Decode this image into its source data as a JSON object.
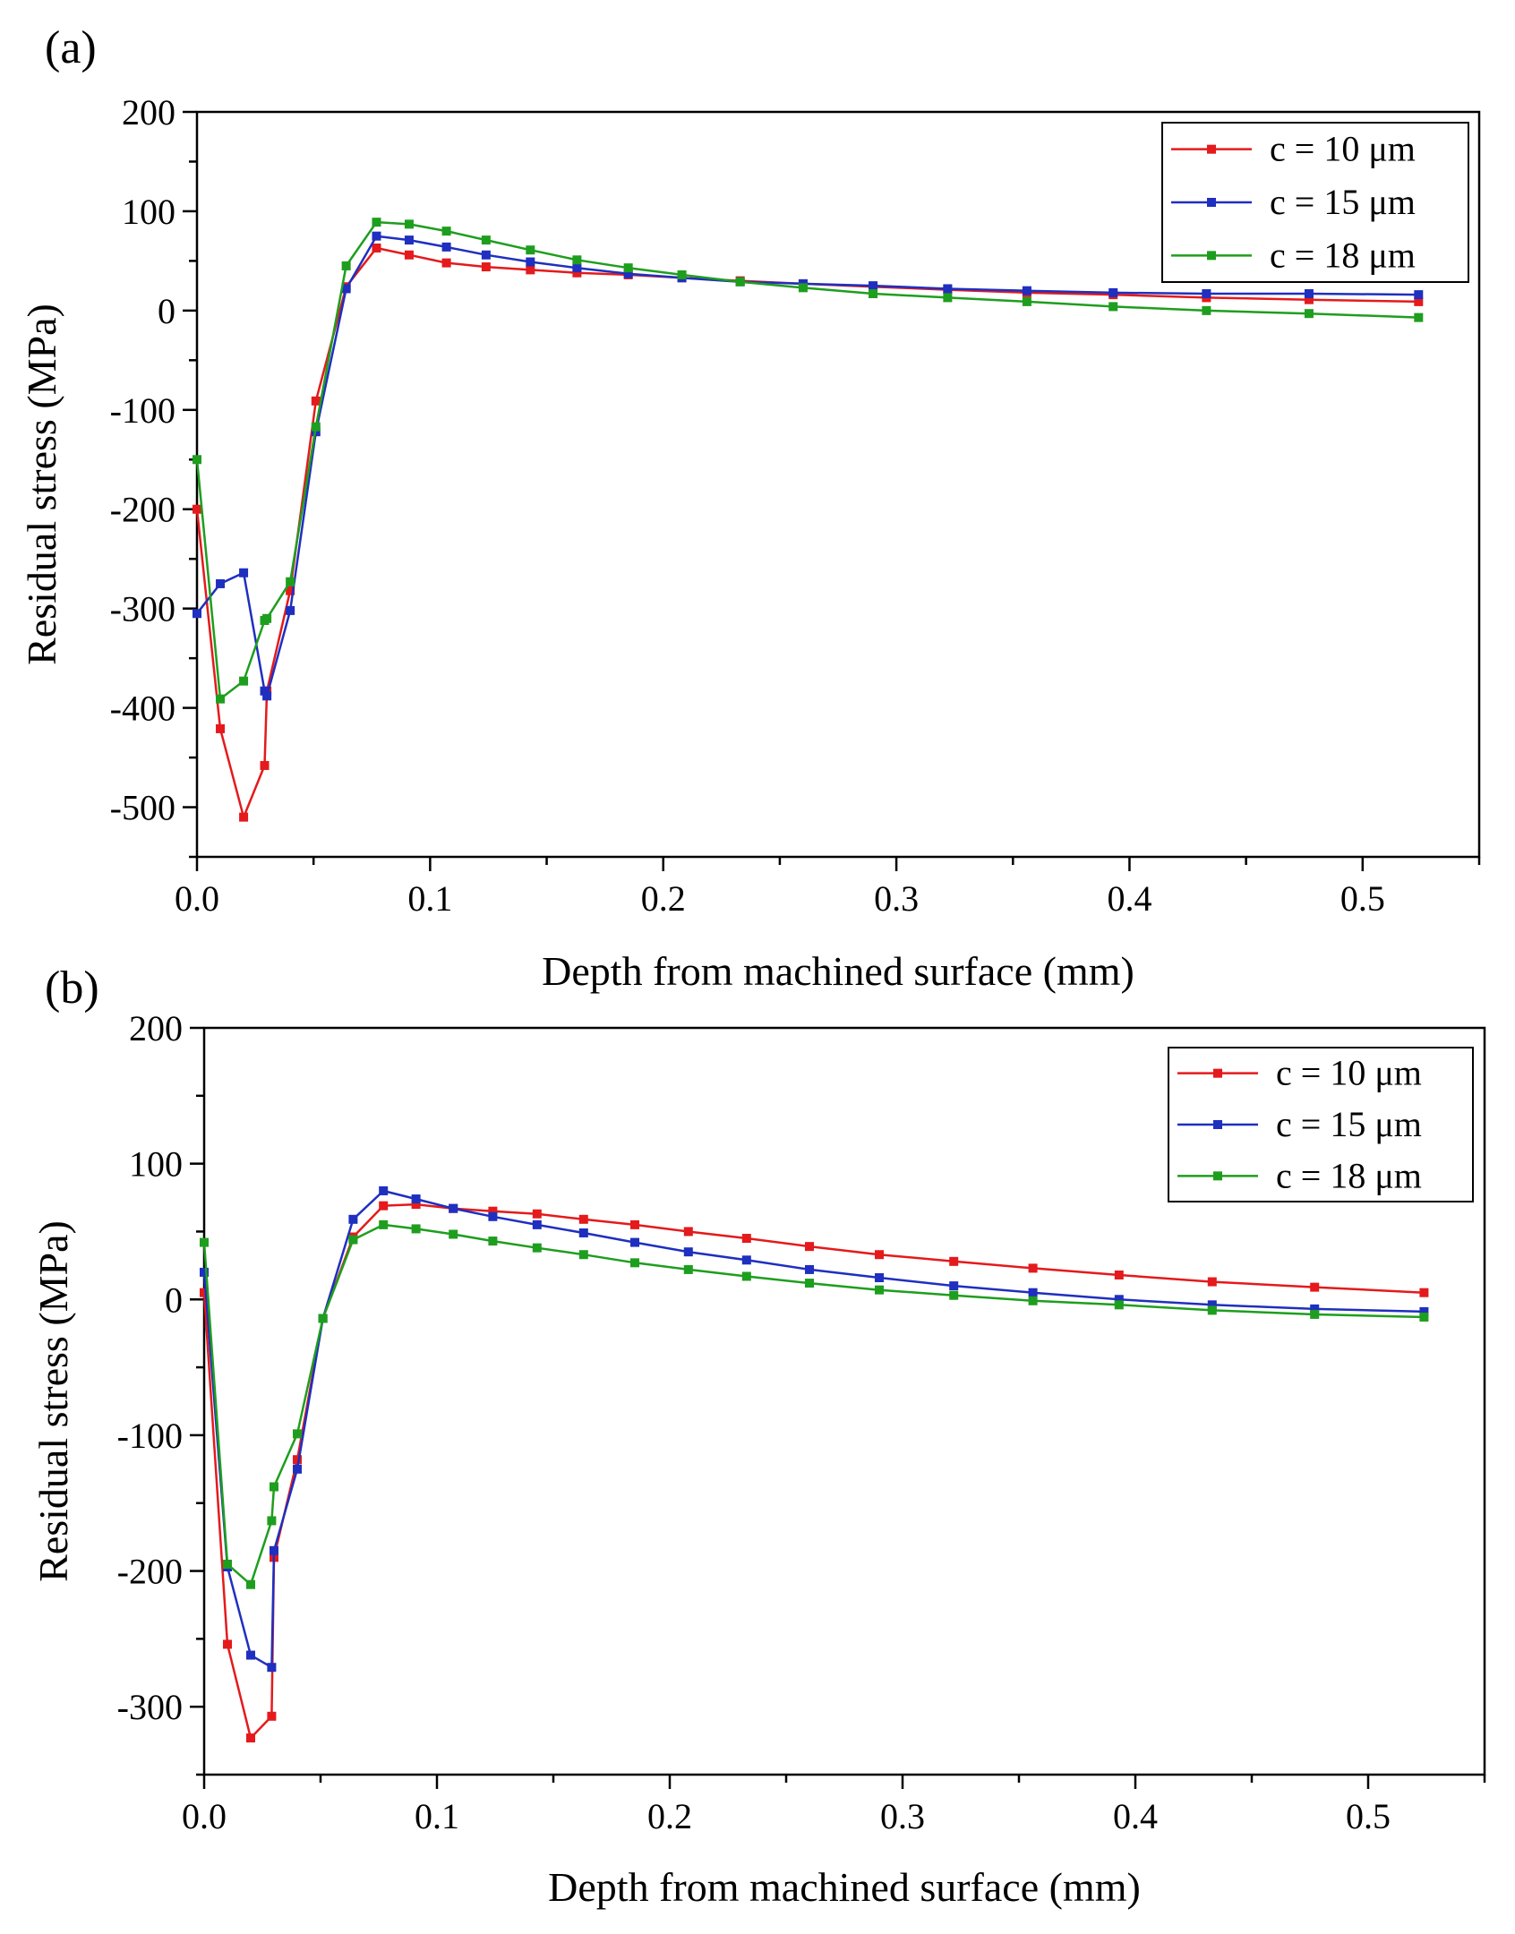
{
  "chart_data": [
    {
      "type": "line",
      "panel_label": "(a)",
      "title": "",
      "xlabel": "Depth from machined surface (mm)",
      "ylabel": "Residual stress (MPa)",
      "xlim": [
        0,
        0.55
      ],
      "ylim": [
        -550,
        200
      ],
      "x_ticks": [
        0.0,
        0.1,
        0.2,
        0.3,
        0.4,
        0.5
      ],
      "x_tick_labels": [
        "0.0",
        "0.1",
        "0.2",
        "0.3",
        "0.4",
        "0.5"
      ],
      "y_ticks": [
        200,
        100,
        0,
        -100,
        -200,
        -300,
        -400,
        -500
      ],
      "y_tick_labels": [
        "200",
        "100",
        "0",
        "-100",
        "-200",
        "-300",
        "-400",
        "-500"
      ],
      "grid": false,
      "legend": "top-right",
      "series": [
        {
          "name": "c = 10 μm",
          "color": "#e41a1c",
          "points": [
            [
              0,
              -200
            ],
            [
              0.01,
              -421
            ],
            [
              0.02,
              -510
            ],
            [
              0.029,
              -458
            ],
            [
              0.03,
              -383
            ],
            [
              0.04,
              -282
            ],
            [
              0.051,
              -91
            ],
            [
              0.064,
              24
            ],
            [
              0.077,
              63
            ],
            [
              0.091,
              56
            ],
            [
              0.107,
              48
            ],
            [
              0.124,
              44
            ],
            [
              0.143,
              41
            ],
            [
              0.163,
              38
            ],
            [
              0.185,
              36
            ],
            [
              0.208,
              33
            ],
            [
              0.233,
              30
            ],
            [
              0.26,
              27
            ],
            [
              0.29,
              24
            ],
            [
              0.322,
              21
            ],
            [
              0.356,
              18
            ],
            [
              0.393,
              16
            ],
            [
              0.433,
              13
            ],
            [
              0.477,
              11
            ],
            [
              0.524,
              9
            ]
          ]
        },
        {
          "name": "c = 15 μm",
          "color": "#1f2fbf",
          "points": [
            [
              0,
              -305
            ],
            [
              0.01,
              -275
            ],
            [
              0.02,
              -264
            ],
            [
              0.029,
              -383
            ],
            [
              0.03,
              -388
            ],
            [
              0.04,
              -302
            ],
            [
              0.051,
              -122
            ],
            [
              0.064,
              22
            ],
            [
              0.077,
              75
            ],
            [
              0.091,
              71
            ],
            [
              0.107,
              64
            ],
            [
              0.124,
              56
            ],
            [
              0.143,
              49
            ],
            [
              0.163,
              43
            ],
            [
              0.185,
              37
            ],
            [
              0.208,
              33
            ],
            [
              0.233,
              29
            ],
            [
              0.26,
              27
            ],
            [
              0.29,
              25
            ],
            [
              0.322,
              22
            ],
            [
              0.356,
              20
            ],
            [
              0.393,
              18
            ],
            [
              0.433,
              17
            ],
            [
              0.477,
              17
            ],
            [
              0.524,
              16
            ]
          ]
        },
        {
          "name": "c = 18 μm",
          "color": "#1e9e1e",
          "points": [
            [
              0,
              -150
            ],
            [
              0.01,
              -391
            ],
            [
              0.02,
              -373
            ],
            [
              0.029,
              -312
            ],
            [
              0.03,
              -310
            ],
            [
              0.04,
              -273
            ],
            [
              0.051,
              -117
            ],
            [
              0.064,
              45
            ],
            [
              0.077,
              89
            ],
            [
              0.091,
              87
            ],
            [
              0.107,
              80
            ],
            [
              0.124,
              71
            ],
            [
              0.143,
              61
            ],
            [
              0.163,
              51
            ],
            [
              0.185,
              43
            ],
            [
              0.208,
              36
            ],
            [
              0.233,
              29
            ],
            [
              0.26,
              23
            ],
            [
              0.29,
              17
            ],
            [
              0.322,
              13
            ],
            [
              0.356,
              9
            ],
            [
              0.393,
              4
            ],
            [
              0.433,
              0
            ],
            [
              0.477,
              -3
            ],
            [
              0.524,
              -7
            ]
          ]
        }
      ]
    },
    {
      "type": "line",
      "panel_label": "(b)",
      "title": "",
      "xlabel": "Depth from machined surface (mm)",
      "ylabel": "Residual stress (MPa)",
      "xlim": [
        0,
        0.55
      ],
      "ylim": [
        -350,
        200
      ],
      "x_ticks": [
        0.0,
        0.1,
        0.2,
        0.3,
        0.4,
        0.5
      ],
      "x_tick_labels": [
        "0.0",
        "0.1",
        "0.2",
        "0.3",
        "0.4",
        "0.5"
      ],
      "y_ticks": [
        200,
        100,
        0,
        -100,
        -200,
        -300
      ],
      "y_tick_labels": [
        "200",
        "100",
        "0",
        "-100",
        "-200",
        "-300"
      ],
      "grid": false,
      "legend": "top-right",
      "series": [
        {
          "name": "c = 10 μm",
          "color": "#e41a1c",
          "points": [
            [
              0,
              5
            ],
            [
              0.01,
              -254
            ],
            [
              0.02,
              -323
            ],
            [
              0.029,
              -307
            ],
            [
              0.03,
              -190
            ],
            [
              0.04,
              -118
            ],
            [
              0.051,
              -14
            ],
            [
              0.064,
              46
            ],
            [
              0.077,
              69
            ],
            [
              0.091,
              70
            ],
            [
              0.107,
              67
            ],
            [
              0.124,
              65
            ],
            [
              0.143,
              63
            ],
            [
              0.163,
              59
            ],
            [
              0.185,
              55
            ],
            [
              0.208,
              50
            ],
            [
              0.233,
              45
            ],
            [
              0.26,
              39
            ],
            [
              0.29,
              33
            ],
            [
              0.322,
              28
            ],
            [
              0.356,
              23
            ],
            [
              0.393,
              18
            ],
            [
              0.433,
              13
            ],
            [
              0.477,
              9
            ],
            [
              0.524,
              5
            ]
          ]
        },
        {
          "name": "c = 15 μm",
          "color": "#1f2fbf",
          "points": [
            [
              0,
              20
            ],
            [
              0.01,
              -197
            ],
            [
              0.02,
              -262
            ],
            [
              0.029,
              -271
            ],
            [
              0.03,
              -185
            ],
            [
              0.04,
              -125
            ],
            [
              0.051,
              -14
            ],
            [
              0.064,
              59
            ],
            [
              0.077,
              80
            ],
            [
              0.091,
              74
            ],
            [
              0.107,
              67
            ],
            [
              0.124,
              61
            ],
            [
              0.143,
              55
            ],
            [
              0.163,
              49
            ],
            [
              0.185,
              42
            ],
            [
              0.208,
              35
            ],
            [
              0.233,
              29
            ],
            [
              0.26,
              22
            ],
            [
              0.29,
              16
            ],
            [
              0.322,
              10
            ],
            [
              0.356,
              5
            ],
            [
              0.393,
              0
            ],
            [
              0.433,
              -4
            ],
            [
              0.477,
              -7
            ],
            [
              0.524,
              -9
            ]
          ]
        },
        {
          "name": "c = 18 μm",
          "color": "#1e9e1e",
          "points": [
            [
              0,
              42
            ],
            [
              0.01,
              -195
            ],
            [
              0.02,
              -210
            ],
            [
              0.029,
              -163
            ],
            [
              0.03,
              -138
            ],
            [
              0.04,
              -99
            ],
            [
              0.051,
              -14
            ],
            [
              0.064,
              44
            ],
            [
              0.077,
              55
            ],
            [
              0.091,
              52
            ],
            [
              0.107,
              48
            ],
            [
              0.124,
              43
            ],
            [
              0.143,
              38
            ],
            [
              0.163,
              33
            ],
            [
              0.185,
              27
            ],
            [
              0.208,
              22
            ],
            [
              0.233,
              17
            ],
            [
              0.26,
              12
            ],
            [
              0.29,
              7
            ],
            [
              0.322,
              3
            ],
            [
              0.356,
              -1
            ],
            [
              0.393,
              -4
            ],
            [
              0.433,
              -8
            ],
            [
              0.477,
              -11
            ],
            [
              0.524,
              -13
            ]
          ]
        }
      ]
    }
  ]
}
